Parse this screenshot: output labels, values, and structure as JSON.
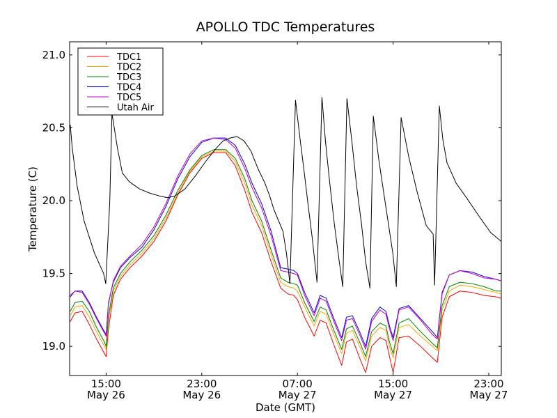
{
  "chart_data": {
    "type": "line",
    "title": "APOLLO TDC Temperatures",
    "xlabel": "Date (GMT)",
    "ylabel": "Temperature (C)",
    "x_units": "hours since 12:00 May 26 (GMT)",
    "xlim": [
      -0.05,
      36.05
    ],
    "ylim": [
      18.8,
      21.09
    ],
    "grid": false,
    "legend_position": "top-left",
    "yticks": [
      {
        "value": 19.0,
        "label": "19.0"
      },
      {
        "value": 19.5,
        "label": "19.5"
      },
      {
        "value": 20.0,
        "label": "20.0"
      },
      {
        "value": 20.5,
        "label": "20.5"
      },
      {
        "value": 21.0,
        "label": "21.0"
      }
    ],
    "xticks": [
      {
        "value": 3,
        "time": "15:00",
        "date": "May 26"
      },
      {
        "value": 11,
        "time": "23:00",
        "date": "May 26"
      },
      {
        "value": 19,
        "time": "07:00",
        "date": "May 27"
      },
      {
        "value": 27,
        "time": "15:00",
        "date": "May 27"
      },
      {
        "value": 35,
        "time": "23:00",
        "date": "May 27"
      }
    ],
    "series": [
      {
        "name": "TDC1",
        "color": "#ff0000",
        "x": [
          0,
          0.4,
          1.0,
          1.6,
          2.2,
          2.8,
          3.0,
          3.2,
          3.6,
          4.2,
          5.0,
          6.0,
          7.0,
          8.0,
          9.0,
          10.0,
          11.0,
          12.0,
          13.0,
          13.8,
          14.6,
          15.2,
          16.0,
          16.8,
          17.6,
          18.2,
          18.7,
          19.0,
          19.6,
          20.4,
          20.9,
          21.4,
          22.0,
          22.7,
          23.1,
          23.6,
          24.2,
          24.7,
          25.2,
          25.9,
          26.4,
          26.7,
          27.0,
          27.5,
          28.3,
          29.3,
          30.3,
          30.7,
          31.1,
          31.7,
          32.6,
          33.6,
          34.6,
          35.6,
          36.0
        ],
        "y": [
          19.17,
          19.23,
          19.24,
          19.15,
          19.05,
          18.96,
          18.93,
          19.12,
          19.35,
          19.46,
          19.54,
          19.62,
          19.72,
          19.86,
          20.04,
          20.19,
          20.29,
          20.33,
          20.33,
          20.24,
          20.07,
          19.92,
          19.78,
          19.58,
          19.4,
          19.36,
          19.35,
          19.32,
          19.2,
          19.07,
          19.18,
          19.16,
          19.02,
          18.87,
          19.03,
          19.05,
          18.92,
          18.82,
          19.0,
          19.06,
          19.04,
          18.93,
          18.82,
          19.06,
          19.07,
          19.0,
          18.92,
          18.89,
          19.2,
          19.34,
          19.38,
          19.37,
          19.35,
          19.34,
          19.33
        ]
      },
      {
        "name": "TDC2",
        "color": "#ffa500",
        "x": [
          0,
          0.4,
          1.0,
          1.6,
          2.2,
          2.8,
          3.0,
          3.2,
          3.6,
          4.2,
          5.0,
          6.0,
          7.0,
          8.0,
          9.0,
          10.0,
          11.0,
          12.0,
          13.0,
          13.8,
          14.6,
          15.2,
          16.0,
          16.8,
          17.6,
          18.2,
          18.7,
          19.0,
          19.6,
          20.4,
          20.9,
          21.4,
          22.0,
          22.7,
          23.1,
          23.6,
          24.2,
          24.7,
          25.2,
          25.9,
          26.4,
          26.7,
          27.0,
          27.5,
          28.3,
          29.3,
          30.3,
          30.7,
          31.1,
          31.7,
          32.6,
          33.6,
          34.6,
          35.6,
          36.0
        ],
        "y": [
          19.21,
          19.27,
          19.28,
          19.2,
          19.1,
          19.01,
          18.98,
          19.18,
          19.38,
          19.48,
          19.56,
          19.64,
          19.74,
          19.88,
          20.05,
          20.2,
          20.3,
          20.34,
          20.34,
          20.27,
          20.12,
          19.97,
          19.83,
          19.63,
          19.44,
          19.41,
          19.4,
          19.38,
          19.27,
          19.14,
          19.24,
          19.22,
          19.09,
          18.95,
          19.09,
          19.11,
          19.0,
          18.9,
          19.07,
          19.13,
          19.11,
          19.0,
          18.92,
          19.13,
          19.15,
          19.07,
          19.0,
          18.97,
          19.25,
          19.38,
          19.42,
          19.41,
          19.39,
          19.37,
          19.36
        ]
      },
      {
        "name": "TDC3",
        "color": "#008000",
        "x": [
          0,
          0.4,
          1.0,
          1.6,
          2.2,
          2.8,
          3.0,
          3.2,
          3.6,
          4.2,
          5.0,
          6.0,
          7.0,
          8.0,
          9.0,
          10.0,
          11.0,
          12.0,
          13.0,
          13.8,
          14.6,
          15.2,
          16.0,
          16.8,
          17.6,
          18.2,
          18.7,
          19.0,
          19.6,
          20.4,
          20.9,
          21.4,
          22.0,
          22.7,
          23.1,
          23.6,
          24.2,
          24.7,
          25.2,
          25.9,
          26.4,
          26.7,
          27.0,
          27.5,
          28.3,
          29.3,
          30.3,
          30.7,
          31.1,
          31.7,
          32.6,
          33.6,
          34.6,
          35.6,
          36.0
        ],
        "y": [
          19.24,
          19.3,
          19.31,
          19.24,
          19.13,
          19.04,
          19.0,
          19.21,
          19.4,
          19.5,
          19.58,
          19.66,
          19.76,
          19.9,
          20.07,
          20.21,
          20.31,
          20.35,
          20.35,
          20.29,
          20.15,
          20.0,
          19.86,
          19.66,
          19.47,
          19.44,
          19.43,
          19.42,
          19.3,
          19.17,
          19.27,
          19.25,
          19.12,
          18.98,
          19.12,
          19.14,
          19.03,
          18.93,
          19.1,
          19.16,
          19.14,
          19.03,
          18.95,
          19.16,
          19.19,
          19.1,
          19.02,
          18.99,
          19.28,
          19.41,
          19.44,
          19.43,
          19.41,
          19.38,
          19.38
        ]
      },
      {
        "name": "TDC4",
        "color": "#0000ff",
        "x": [
          0,
          0.4,
          1.0,
          1.6,
          2.2,
          2.8,
          3.0,
          3.2,
          3.6,
          4.2,
          5.0,
          6.0,
          7.0,
          8.0,
          9.0,
          10.0,
          11.0,
          12.0,
          13.0,
          13.8,
          14.6,
          15.2,
          16.0,
          16.8,
          17.6,
          18.2,
          18.7,
          19.0,
          19.6,
          20.4,
          20.9,
          21.4,
          22.0,
          22.7,
          23.1,
          23.6,
          24.2,
          24.7,
          25.2,
          25.9,
          26.4,
          26.7,
          27.0,
          27.5,
          28.3,
          29.3,
          30.3,
          30.7,
          31.1,
          31.7,
          32.6,
          33.6,
          34.6,
          35.6,
          36.0
        ],
        "y": [
          19.34,
          19.38,
          19.38,
          19.3,
          19.2,
          19.11,
          19.08,
          19.3,
          19.44,
          19.54,
          19.61,
          19.68,
          19.8,
          19.96,
          20.15,
          20.3,
          20.4,
          20.43,
          20.43,
          20.38,
          20.25,
          20.12,
          19.98,
          19.79,
          19.54,
          19.53,
          19.52,
          19.5,
          19.37,
          19.23,
          19.35,
          19.33,
          19.2,
          19.06,
          19.2,
          19.21,
          19.1,
          19.0,
          19.19,
          19.27,
          19.24,
          19.14,
          19.06,
          19.26,
          19.28,
          19.19,
          19.1,
          19.06,
          19.37,
          19.49,
          19.52,
          19.51,
          19.48,
          19.46,
          19.45
        ]
      },
      {
        "name": "TDC5",
        "color": "#bf00bf",
        "x": [
          0,
          0.4,
          1.0,
          1.6,
          2.2,
          2.8,
          3.0,
          3.2,
          3.6,
          4.2,
          5.0,
          6.0,
          7.0,
          8.0,
          9.0,
          10.0,
          11.0,
          12.0,
          13.0,
          13.8,
          14.6,
          15.2,
          16.0,
          16.8,
          17.6,
          18.2,
          18.7,
          19.0,
          19.6,
          20.4,
          20.9,
          21.4,
          22.0,
          22.7,
          23.1,
          23.6,
          24.2,
          24.7,
          25.2,
          25.9,
          26.4,
          26.7,
          27.0,
          27.5,
          28.3,
          29.3,
          30.3,
          30.7,
          31.1,
          31.7,
          32.6,
          33.6,
          34.6,
          35.6,
          36.0
        ],
        "y": [
          19.35,
          19.38,
          19.37,
          19.29,
          19.19,
          19.1,
          19.07,
          19.29,
          19.45,
          19.55,
          19.62,
          19.7,
          19.82,
          19.98,
          20.17,
          20.32,
          20.41,
          20.43,
          20.42,
          20.36,
          20.22,
          20.09,
          19.95,
          19.76,
          19.52,
          19.51,
          19.5,
          19.49,
          19.35,
          19.21,
          19.33,
          19.31,
          19.18,
          19.04,
          19.18,
          19.19,
          19.08,
          18.98,
          19.17,
          19.25,
          19.22,
          19.12,
          19.04,
          19.25,
          19.27,
          19.18,
          19.08,
          19.05,
          19.36,
          19.49,
          19.52,
          19.5,
          19.47,
          19.46,
          19.45
        ]
      },
      {
        "name": "Utah Air",
        "color": "#000000",
        "x": [
          0,
          0.17,
          0.58,
          1.16,
          2.03,
          2.79,
          2.97,
          3.31,
          3.49,
          3.95,
          4.36,
          4.94,
          5.81,
          6.69,
          7.56,
          8.14,
          8.72,
          9.59,
          10.47,
          11.34,
          12.21,
          12.79,
          13.37,
          13.95,
          14.53,
          15.12,
          15.7,
          16.28,
          16.69,
          17.03,
          17.79,
          18.08,
          18.37,
          18.84,
          19.24,
          19.53,
          19.88,
          20.23,
          20.64,
          21.05,
          21.34,
          21.69,
          22.09,
          22.5,
          22.79,
          23.14,
          23.55,
          23.95,
          24.36,
          24.71,
          25.06,
          25.35,
          25.81,
          26.28,
          26.63,
          26.98,
          27.27,
          27.67,
          28.31,
          29.01,
          29.77,
          30.35,
          30.47,
          30.87,
          31.16,
          31.51,
          32.27,
          33.14,
          34.3,
          35.17,
          36.05
        ],
        "y": [
          20.52,
          20.36,
          20.1,
          19.86,
          19.64,
          19.5,
          19.43,
          20.0,
          20.6,
          20.36,
          20.19,
          20.13,
          20.08,
          20.05,
          20.03,
          20.02,
          20.03,
          20.08,
          20.17,
          20.27,
          20.36,
          20.41,
          20.43,
          20.44,
          20.41,
          20.34,
          20.22,
          20.12,
          20.03,
          19.94,
          19.79,
          19.64,
          19.43,
          20.69,
          20.41,
          20.22,
          19.98,
          19.75,
          19.44,
          20.71,
          20.41,
          20.13,
          19.84,
          19.58,
          19.41,
          20.7,
          20.41,
          20.1,
          19.84,
          19.58,
          19.4,
          20.58,
          20.28,
          20.02,
          19.83,
          19.64,
          19.41,
          20.57,
          20.3,
          20.06,
          19.83,
          19.77,
          19.42,
          20.65,
          20.42,
          20.26,
          20.12,
          20.02,
          19.88,
          19.78,
          19.72
        ]
      }
    ]
  }
}
